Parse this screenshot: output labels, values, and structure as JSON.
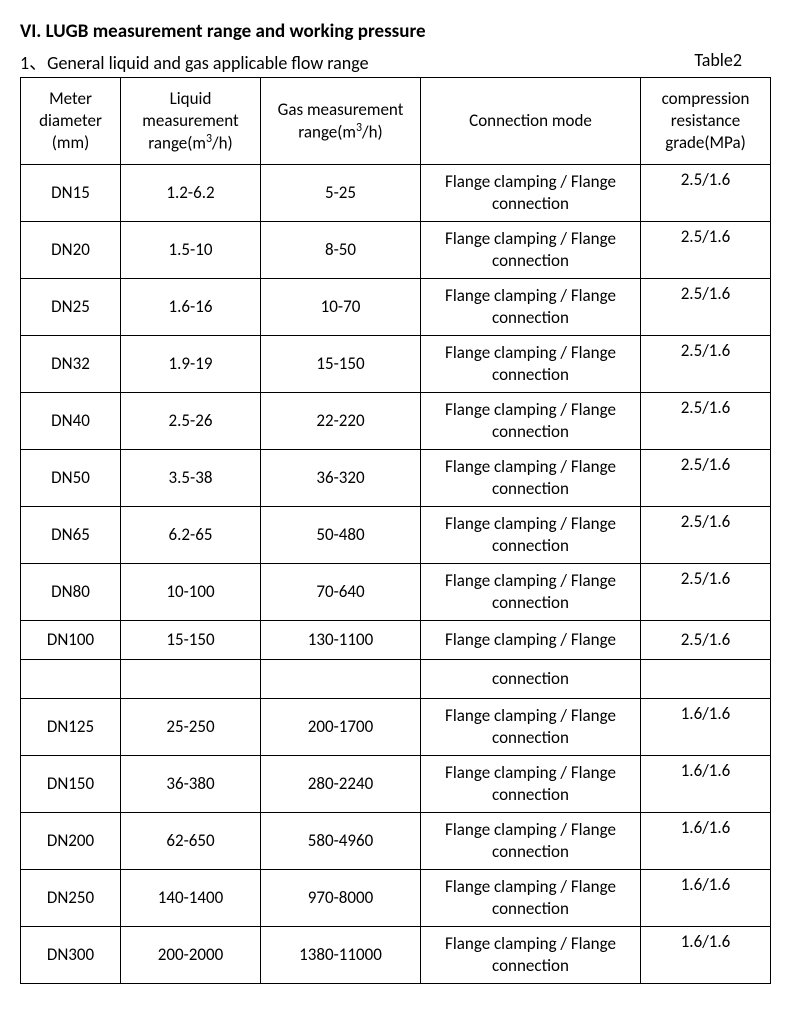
{
  "heading": "VI. LUGB measurement range and working pressure",
  "subtitle_left": "1、General liquid and gas applicable flow range",
  "subtitle_right": "Table2",
  "columns": {
    "c1": "Meter diameter (mm)",
    "c2_pre": "Liquid measurement range(m",
    "c2_post": "/h)",
    "c3_pre": "Gas measurement range(m",
    "c3_post": "/h)",
    "c4": "Connection mode",
    "c5": "compression resistance grade(MPa)"
  },
  "rows": [
    {
      "d": "DN15",
      "liq": "1.2-6.2",
      "gas": "5-25",
      "conn": "Flange clamping / Flange connection",
      "cp": "2.5/1.6"
    },
    {
      "d": "DN20",
      "liq": "1.5-10",
      "gas": "8-50",
      "conn": "Flange clamping / Flange connection",
      "cp": "2.5/1.6"
    },
    {
      "d": "DN25",
      "liq": "1.6-16",
      "gas": "10-70",
      "conn": "Flange clamping / Flange connection",
      "cp": "2.5/1.6"
    },
    {
      "d": "DN32",
      "liq": "1.9-19",
      "gas": "15-150",
      "conn": "Flange clamping / Flange connection",
      "cp": "2.5/1.6"
    },
    {
      "d": "DN40",
      "liq": "2.5-26",
      "gas": "22-220",
      "conn": "Flange clamping / Flange connection",
      "cp": "2.5/1.6"
    },
    {
      "d": "DN50",
      "liq": "3.5-38",
      "gas": "36-320",
      "conn": "Flange clamping / Flange connection",
      "cp": "2.5/1.6"
    },
    {
      "d": "DN65",
      "liq": "6.2-65",
      "gas": "50-480",
      "conn": "Flange clamping / Flange connection",
      "cp": "2.5/1.6"
    },
    {
      "d": "DN80",
      "liq": "10-100",
      "gas": "70-640",
      "conn": "Flange clamping / Flange connection",
      "cp": "2.5/1.6"
    }
  ],
  "split_row_a": {
    "d": "DN100",
    "liq": "15-150",
    "gas": "130-1100",
    "conn": "Flange clamping / Flange",
    "cp": "2.5/1.6"
  },
  "split_row_b": {
    "d": "",
    "liq": "",
    "gas": "",
    "conn": "connection",
    "cp": ""
  },
  "rows2": [
    {
      "d": "DN125",
      "liq": "25-250",
      "gas": "200-1700",
      "conn": "Flange clamping / Flange connection",
      "cp": "1.6/1.6"
    },
    {
      "d": "DN150",
      "liq": "36-380",
      "gas": "280-2240",
      "conn": "Flange clamping / Flange connection",
      "cp": "1.6/1.6"
    },
    {
      "d": "DN200",
      "liq": "62-650",
      "gas": "580-4960",
      "conn": "Flange clamping / Flange connection",
      "cp": "1.6/1.6"
    },
    {
      "d": "DN250",
      "liq": "140-1400",
      "gas": "970-8000",
      "conn": "Flange clamping / Flange connection",
      "cp": "1.6/1.6"
    },
    {
      "d": "DN300",
      "liq": "200-2000",
      "gas": "1380-11000",
      "conn": "Flange clamping / Flange connection",
      "cp": "1.6/1.6"
    }
  ]
}
